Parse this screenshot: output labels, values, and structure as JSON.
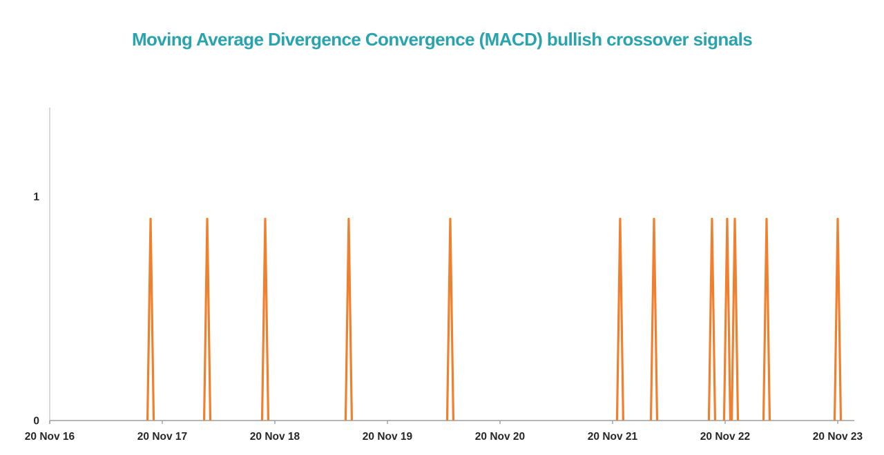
{
  "chart_data": {
    "type": "line",
    "title": "Moving Average Divergence Convergence (MACD) bullish crossover signals",
    "subtitle": "",
    "xlabel": "",
    "ylabel": "",
    "legend": "none",
    "grid": false,
    "x_axis": {
      "tick_labels": [
        "20 Nov 16",
        "20 Nov 17",
        "20 Nov 18",
        "20 Nov 19",
        "20 Nov 20",
        "20 Nov 21",
        "20 Nov 22",
        "20 Nov 23"
      ],
      "tick_interval": "1 year",
      "xlim_years_from_first_tick": [
        0,
        7.15
      ]
    },
    "y_axis": {
      "tick_labels": [
        "0",
        "1"
      ],
      "tick_values": [
        0,
        1
      ],
      "ylim": [
        0,
        1.4
      ]
    },
    "series": [
      {
        "name": "MACD bullish crossover signal",
        "style": "impulse-spike",
        "peak_value": 0.9,
        "base_value": 0,
        "spikes": [
          {
            "t_years": 0.896,
            "date_approx": "13 Oct 17",
            "value": 0.9
          },
          {
            "t_years": 1.399,
            "date_approx": "15 Apr 18",
            "value": 0.9
          },
          {
            "t_years": 1.914,
            "date_approx": "20 Oct 18",
            "value": 0.9
          },
          {
            "t_years": 2.656,
            "date_approx": "18 Jul 19",
            "value": 0.9
          },
          {
            "t_years": 3.558,
            "date_approx": "12 Jun 20",
            "value": 0.9
          },
          {
            "t_years": 5.067,
            "date_approx": "15 Dec 21",
            "value": 0.9
          },
          {
            "t_years": 5.368,
            "date_approx": "04 Apr 22",
            "value": 0.9
          },
          {
            "t_years": 5.883,
            "date_approx": "09 Oct 22",
            "value": 0.9
          },
          {
            "t_years": 6.018,
            "date_approx": "27 Nov 22",
            "value": 0.9
          },
          {
            "t_years": 6.086,
            "date_approx": "22 Dec 22",
            "value": 0.9
          },
          {
            "t_years": 6.368,
            "date_approx": "04 Apr 23",
            "value": 0.9
          },
          {
            "t_years": 7.0,
            "date_approx": "20 Nov 23",
            "value": 0.9
          }
        ]
      }
    ],
    "colors": {
      "signal": "#F0802F",
      "title": "#29A3AE",
      "y_axis_line": "#D9D9D9",
      "x_axis_line": "#9E9E9E",
      "tick_mark": "#9E9E9E",
      "tick_label": "#262626",
      "background": "#FFFFFF"
    }
  }
}
